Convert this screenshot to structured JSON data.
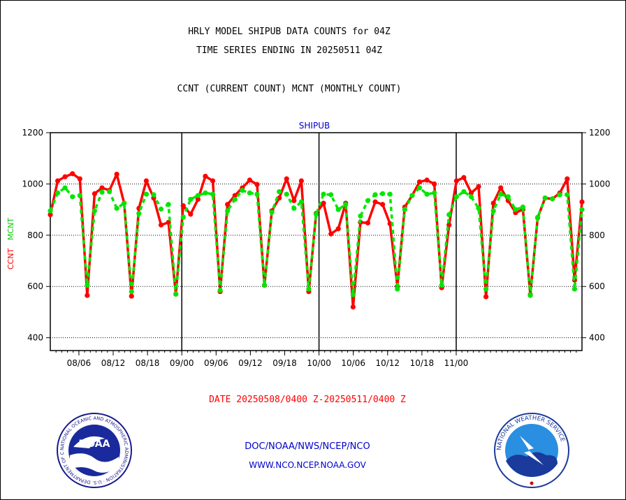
{
  "header": {
    "title_line1": "HRLY MODEL SHIPUB DATA COUNTS for 04Z",
    "title_line2": "TIME SERIES ENDING IN 20250511 04Z",
    "legend_line": "CCNT (CURRENT COUNT) MCNT (MONTHLY COUNT)"
  },
  "footer": {
    "date_range": "DATE 20250508/0400 Z-20250511/0400 Z",
    "org_path": "DOC/NOAA/NWS/NCEP/NCO",
    "website": "WWW.NCO.NCEP.NOAA.GOV"
  },
  "logos": {
    "noaa_text": "NOAA",
    "noaa_ring_text": "NATIONAL OCEANIC AND ATMOSPHERIC ADMINISTRATION · U.S. DEPARTMENT OF COMMERCE",
    "nws_ring_text": "NATIONAL WEATHER SERVICE"
  },
  "colors": {
    "ccnt": "#ff0000",
    "mcnt": "#00e600",
    "panel_label": "#0000cc",
    "footer_date": "#ff0000",
    "footer_links": "#0000cc"
  },
  "chart_data": {
    "type": "line",
    "title": "SHIPUB",
    "ylabel_parts": [
      "CCNT",
      "MCNT"
    ],
    "ylim": [
      350,
      1200
    ],
    "yticks": [
      400,
      600,
      800,
      1000,
      1200
    ],
    "x_range_days": [
      0,
      93
    ],
    "x_tick_labels": [
      {
        "day": 5,
        "label": "08/06"
      },
      {
        "day": 11,
        "label": "08/12"
      },
      {
        "day": 17,
        "label": "08/18"
      },
      {
        "day": 23,
        "label": "09/00"
      },
      {
        "day": 29,
        "label": "09/06"
      },
      {
        "day": 35,
        "label": "09/12"
      },
      {
        "day": 41,
        "label": "09/18"
      },
      {
        "day": 47,
        "label": "10/00"
      },
      {
        "day": 53,
        "label": "10/06"
      },
      {
        "day": 59,
        "label": "10/12"
      },
      {
        "day": 65,
        "label": "10/18"
      },
      {
        "day": 71,
        "label": "11/00"
      }
    ],
    "month_dividers_days": [
      23,
      47,
      71
    ],
    "grid_y": true,
    "series": [
      {
        "name": "CCNT",
        "dashed": false,
        "values": [
          880,
          1012,
          1028,
          1040,
          1020,
          565,
          962,
          985,
          975,
          1038,
          925,
          562,
          905,
          1012,
          945,
          840,
          850,
          570,
          915,
          882,
          940,
          1030,
          1012,
          580,
          920,
          955,
          985,
          1015,
          998,
          605,
          895,
          945,
          1020,
          935,
          1012,
          580,
          885,
          925,
          805,
          825,
          925,
          520,
          850,
          848,
          930,
          920,
          845,
          600,
          910,
          955,
          1008,
          1015,
          1000,
          595,
          840,
          1012,
          1025,
          965,
          990,
          560,
          925,
          985,
          935,
          888,
          900,
          568,
          868,
          945,
          942,
          965,
          1020,
          625,
          930
        ],
        "end_segment": [
          930
        ]
      },
      {
        "name": "MCNT",
        "dashed": true,
        "values": [
          895,
          965,
          985,
          950,
          955,
          605,
          895,
          968,
          970,
          905,
          925,
          580,
          885,
          960,
          958,
          902,
          920,
          570,
          870,
          940,
          955,
          965,
          960,
          585,
          895,
          940,
          975,
          965,
          960,
          605,
          890,
          970,
          960,
          905,
          930,
          590,
          882,
          960,
          958,
          900,
          920,
          568,
          875,
          935,
          958,
          962,
          960,
          590,
          900,
          955,
          985,
          960,
          965,
          605,
          880,
          950,
          970,
          950,
          905,
          590,
          895,
          960,
          950,
          900,
          910,
          565,
          870,
          945,
          942,
          958,
          958,
          590,
          900
        ]
      }
    ]
  }
}
